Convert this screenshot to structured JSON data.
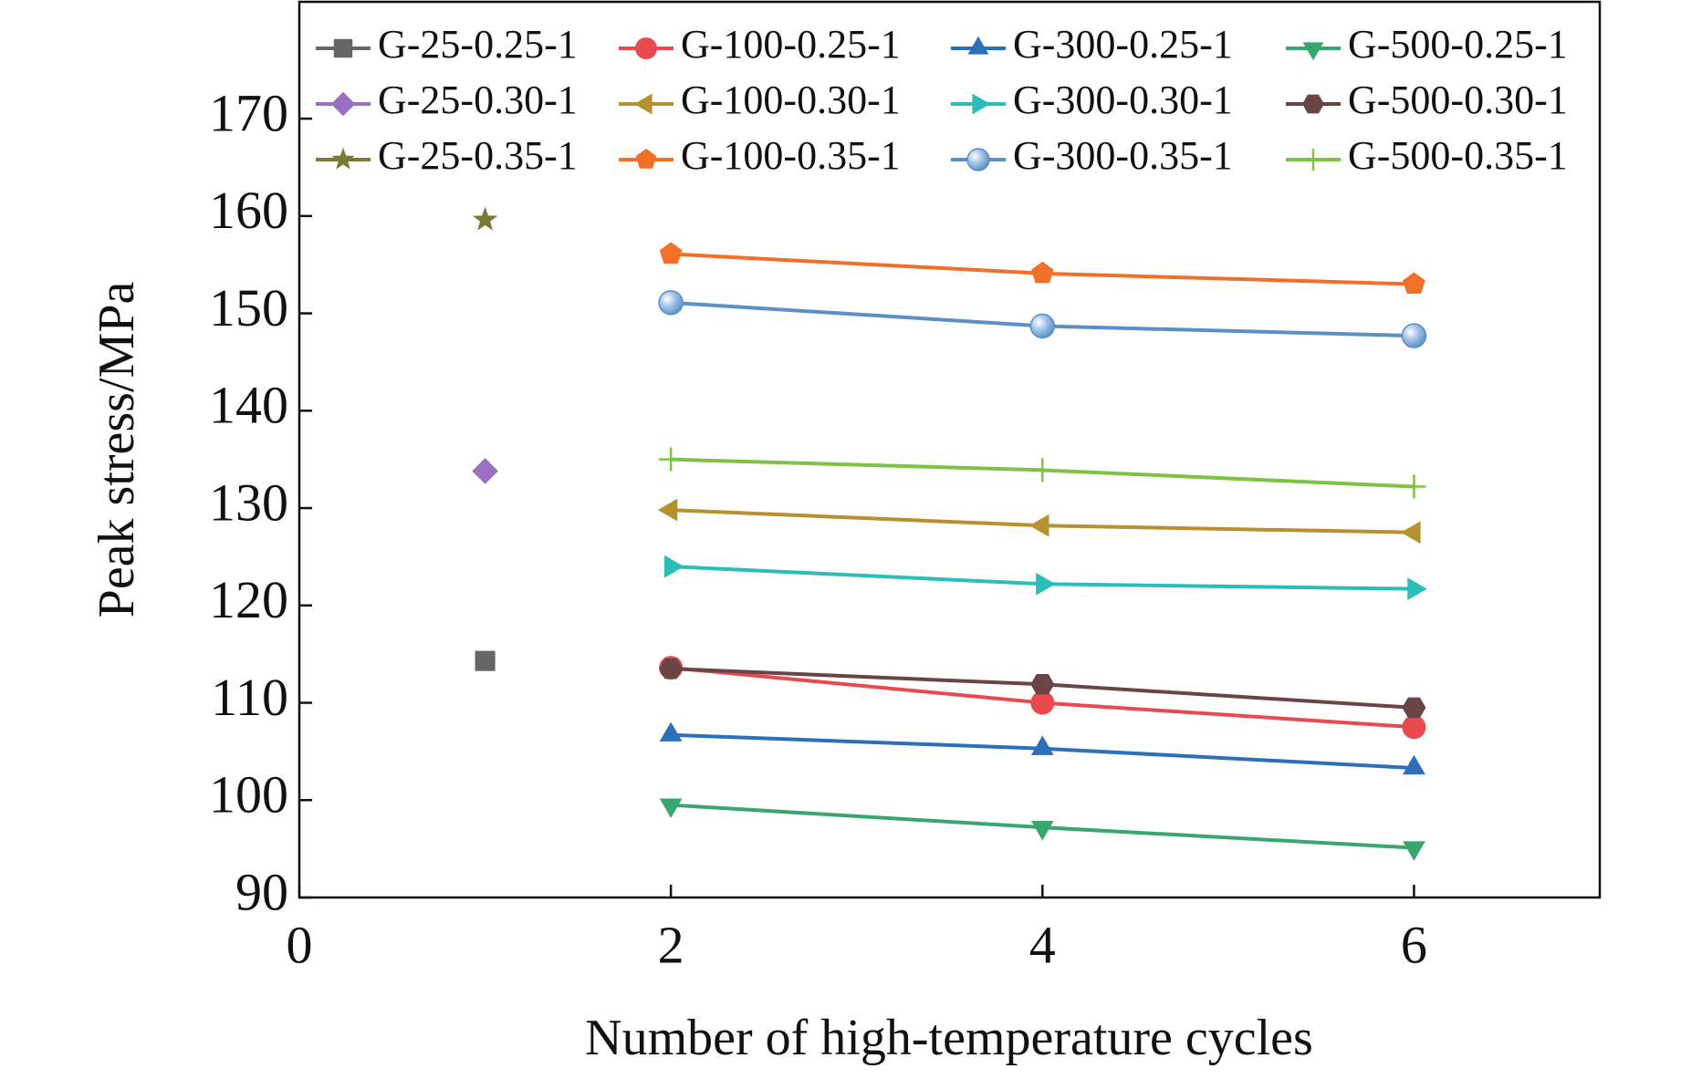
{
  "chart_data": {
    "type": "line",
    "x_label": "Number of high-temperature cycles",
    "y_label": "Peak stress/MPa",
    "xlim": [
      0,
      7
    ],
    "xticks": [
      0,
      2,
      4,
      6
    ],
    "ylim": [
      90,
      182
    ],
    "yticks": [
      90,
      100,
      110,
      120,
      130,
      140,
      150,
      160,
      170
    ],
    "series": [
      {
        "name": "G-25-0.25-1",
        "color": "#666666",
        "marker": "square",
        "x": [
          1
        ],
        "values": [
          114.3
        ]
      },
      {
        "name": "G-100-0.25-1",
        "color": "#e84a4f",
        "marker": "circle",
        "x": [
          2,
          4,
          6
        ],
        "values": [
          113.6,
          110.0,
          107.5
        ]
      },
      {
        "name": "G-300-0.25-1",
        "color": "#2e6fba",
        "marker": "triangle-up",
        "x": [
          2,
          4,
          6
        ],
        "values": [
          106.7,
          105.3,
          103.3
        ]
      },
      {
        "name": "G-500-0.25-1",
        "color": "#3aa66f",
        "marker": "triangle-down",
        "x": [
          2,
          4,
          6
        ],
        "values": [
          99.5,
          97.2,
          95.1
        ]
      },
      {
        "name": "G-25-0.30-1",
        "color": "#9a6fc4",
        "marker": "diamond",
        "x": [
          1
        ],
        "values": [
          133.8
        ]
      },
      {
        "name": "G-100-0.30-1",
        "color": "#b8912f",
        "marker": "triangle-left",
        "x": [
          2,
          4,
          6
        ],
        "values": [
          129.8,
          128.2,
          127.5
        ]
      },
      {
        "name": "G-300-0.30-1",
        "color": "#2bbdb7",
        "marker": "triangle-right",
        "x": [
          2,
          4,
          6
        ],
        "values": [
          124.0,
          122.2,
          121.7
        ]
      },
      {
        "name": "G-500-0.30-1",
        "color": "#6b4447",
        "marker": "hexagon",
        "x": [
          2,
          4,
          6
        ],
        "values": [
          113.5,
          111.9,
          109.5
        ]
      },
      {
        "name": "G-25-0.35-1",
        "color": "#7a7a35",
        "marker": "star",
        "x": [
          1
        ],
        "values": [
          159.6
        ]
      },
      {
        "name": "G-100-0.35-1",
        "color": "#f07028",
        "marker": "pentagon",
        "x": [
          2,
          4,
          6
        ],
        "values": [
          156.1,
          154.1,
          153.0
        ]
      },
      {
        "name": "G-300-0.35-1",
        "color": "#5b8fc8",
        "marker": "sphere",
        "x": [
          2,
          4,
          6
        ],
        "values": [
          151.1,
          148.7,
          147.7
        ]
      },
      {
        "name": "G-500-0.35-1",
        "color": "#7dc242",
        "marker": "plus",
        "x": [
          2,
          4,
          6
        ],
        "values": [
          135.0,
          133.9,
          132.2
        ]
      }
    ]
  }
}
